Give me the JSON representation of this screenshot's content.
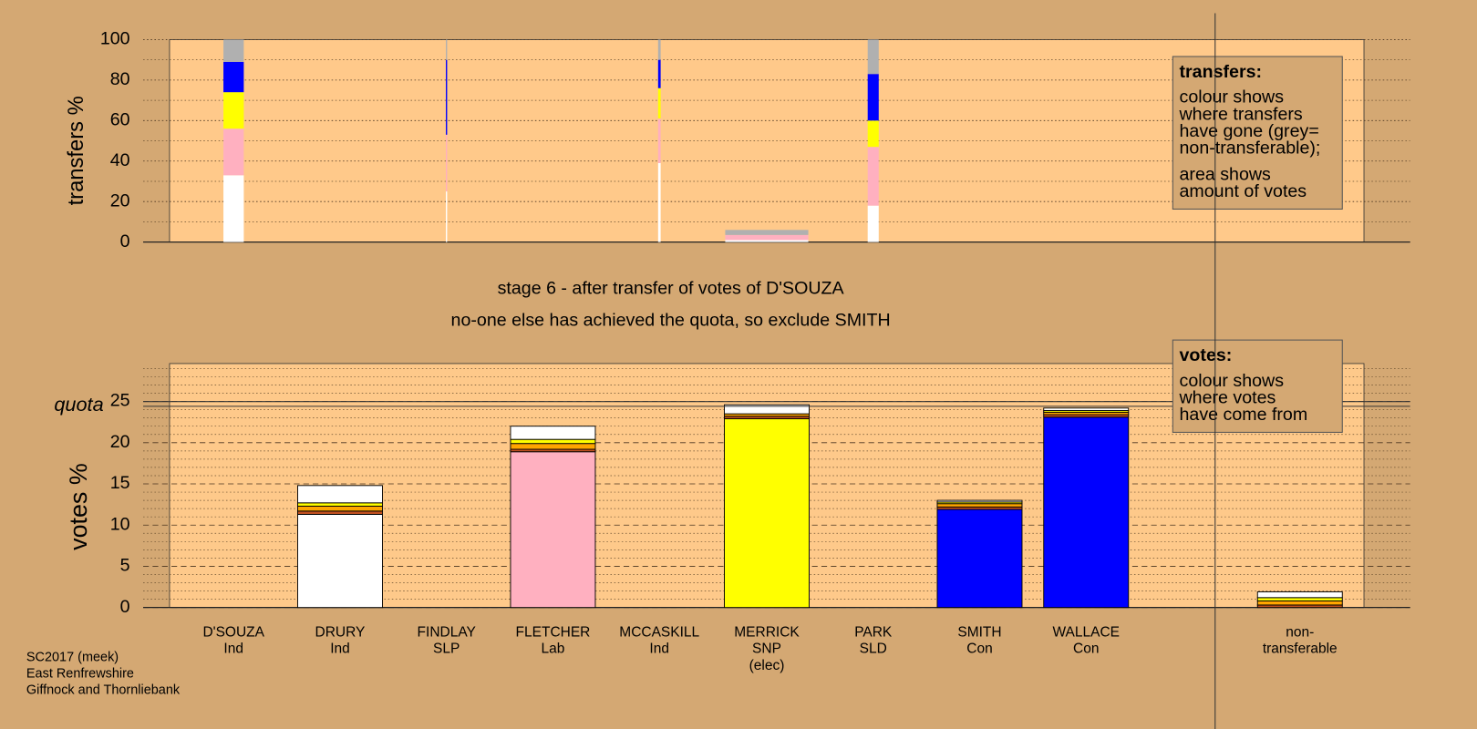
{
  "chart_data": [
    {
      "type": "bar",
      "stacked": true,
      "y_label": "transfers %",
      "ylim": [
        0,
        100
      ],
      "yticks": [
        0,
        20,
        40,
        60,
        80,
        100
      ],
      "yminor": [
        10,
        30,
        50,
        70,
        90
      ],
      "grid": true,
      "bars": [
        {
          "width": 0.24,
          "segments": [
            {
              "color": "#ffffff",
              "value": 33
            },
            {
              "color": "#ffb0c0",
              "value": 23
            },
            {
              "color": "#ffff00",
              "value": 18
            },
            {
              "color": "#0000ff",
              "value": 15
            },
            {
              "color": "#b0b0b0",
              "value": 11
            }
          ]
        },
        null,
        {
          "width": 0.015,
          "segments": [
            {
              "color": "#ffffff",
              "value": 25
            },
            {
              "color": "#ffb0c0",
              "value": 28
            },
            {
              "color": "#0000ff",
              "value": 37
            },
            {
              "color": "#b0b0b0",
              "value": 10
            }
          ]
        },
        null,
        {
          "width": 0.03,
          "segments": [
            {
              "color": "#ffffff",
              "value": 39
            },
            {
              "color": "#ffb0c0",
              "value": 22
            },
            {
              "color": "#ffff00",
              "value": 15
            },
            {
              "color": "#0000ff",
              "value": 14
            },
            {
              "color": "#b0b0b0",
              "value": 10
            }
          ]
        },
        {
          "width": 0.98,
          "segments": [
            {
              "color": "#ffffff",
              "value": 1
            },
            {
              "color": "#ffb0c0",
              "value": 2.5
            },
            {
              "color": "#b0b0b0",
              "value": 2.5
            }
          ]
        },
        {
          "width": 0.13,
          "segments": [
            {
              "color": "#ffffff",
              "value": 18
            },
            {
              "color": "#ffb0c0",
              "value": 29
            },
            {
              "color": "#ffff00",
              "value": 13
            },
            {
              "color": "#0000ff",
              "value": 23
            },
            {
              "color": "#b0b0b0",
              "value": 17
            }
          ]
        },
        null,
        null,
        null
      ],
      "legend": {
        "title": "transfers:",
        "paragraphs": [
          [
            "colour shows",
            "where transfers",
            "have gone (grey=",
            "non-transferable);"
          ],
          [
            "area shows",
            "amount of votes"
          ]
        ]
      }
    },
    {
      "type": "bar",
      "stacked": true,
      "title": "stage 6 - after transfer of votes of D'SOUZA",
      "subtitle": "no-one else has achieved the quota, so exclude SMITH",
      "y_label": "votes %",
      "quota_label": "quota",
      "quota": 24.7,
      "ylim": [
        0,
        29.6
      ],
      "yticks": [
        0,
        5,
        10,
        15,
        20,
        25
      ],
      "yminor": [
        1,
        2,
        3,
        4,
        6,
        7,
        8,
        9,
        11,
        12,
        13,
        14,
        16,
        17,
        18,
        19,
        21,
        22,
        23,
        24,
        26,
        27,
        28,
        29
      ],
      "grid": true,
      "categories": [
        [
          "D'SOUZA",
          "Ind"
        ],
        [
          "DRURY",
          "Ind"
        ],
        [
          "FINDLAY",
          "SLP"
        ],
        [
          "FLETCHER",
          "Lab"
        ],
        [
          "MCCASKILL",
          "Ind"
        ],
        [
          "MERRICK",
          "SNP",
          "(elec)"
        ],
        [
          "PARK",
          "SLD"
        ],
        [
          "SMITH",
          "Con"
        ],
        [
          "WALLACE",
          "Con"
        ],
        [
          "non-",
          "transferable"
        ]
      ],
      "stacks": [
        [],
        [
          {
            "color": "#ffffff",
            "value": 11.3
          },
          {
            "color": "#c05020",
            "value": 0.4
          },
          {
            "color": "#ffa500",
            "value": 0.6
          },
          {
            "color": "#ffff00",
            "value": 0.4
          },
          {
            "color": "#ffffff",
            "value": 2.1
          }
        ],
        [],
        [
          {
            "color": "#ffb0c0",
            "value": 18.9
          },
          {
            "color": "#c05020",
            "value": 0.3
          },
          {
            "color": "#ffa500",
            "value": 0.7
          },
          {
            "color": "#ffff00",
            "value": 0.5
          },
          {
            "color": "#ffffff",
            "value": 1.6
          }
        ],
        [],
        [
          {
            "color": "#ffff00",
            "value": 22.9
          },
          {
            "color": "#c05020",
            "value": 0.3
          },
          {
            "color": "#ffa500",
            "value": 0.3
          },
          {
            "color": "#ffffff",
            "value": 1.1
          }
        ],
        [],
        [
          {
            "color": "#0000ff",
            "value": 11.9
          },
          {
            "color": "#c05020",
            "value": 0.3
          },
          {
            "color": "#ffa500",
            "value": 0.4
          },
          {
            "color": "#ffff00",
            "value": 0.2
          },
          {
            "color": "#ffffff",
            "value": 0.2
          }
        ],
        [
          {
            "color": "#0000ff",
            "value": 23.1
          },
          {
            "color": "#c05020",
            "value": 0.3
          },
          {
            "color": "#ffa500",
            "value": 0.3
          },
          {
            "color": "#ffff00",
            "value": 0.2
          },
          {
            "color": "#ffffff",
            "value": 0.3
          }
        ],
        [
          {
            "color": "#c05020",
            "value": 0.3
          },
          {
            "color": "#ffa500",
            "value": 0.5
          },
          {
            "color": "#ffff00",
            "value": 0.4
          },
          {
            "color": "#ffffff",
            "value": 0.7
          }
        ]
      ],
      "legend": {
        "title": "votes:",
        "paragraphs": [
          [
            "colour shows",
            "where votes",
            "have come from"
          ]
        ]
      }
    }
  ],
  "footer": [
    "SC2017 (meek)",
    "East Renfrewshire",
    "Giffnock and Thornliebank"
  ]
}
